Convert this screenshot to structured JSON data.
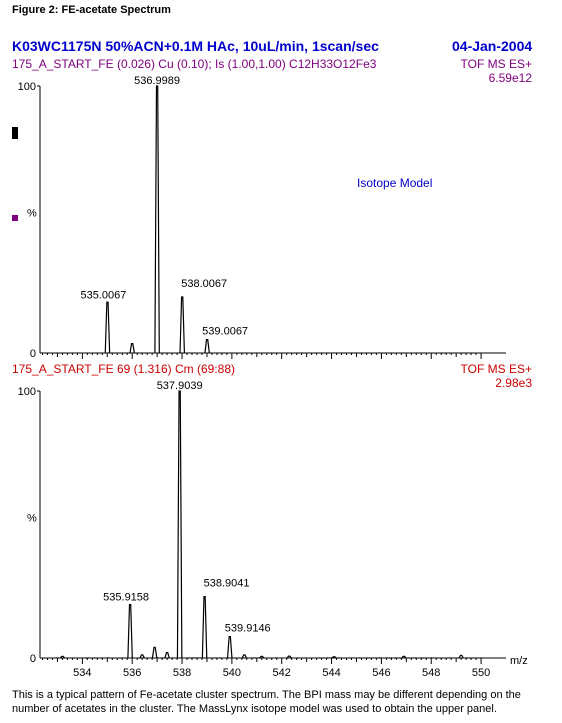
{
  "figure_title": "Figure 2:  FE-acetate Spectrum",
  "experiment_title": "K03WC1175N 50%ACN+0.1M HAc, 10uL/min, 1scan/sec",
  "date": "04-Jan-2004",
  "caption": "This is a typical pattern of Fe-acetate cluster spectrum.  The BPI mass may be different depending on the number of acetates in the cluster.  The MassLynx isotope model was used to obtain the upper panel.",
  "colors": {
    "title": "#0000cc",
    "top_header": "#800080",
    "bottom_header": "#cc0000",
    "marker": "#800080"
  },
  "chart_data": [
    {
      "type": "line",
      "name": "top",
      "header_left": "175_A_START_FE  (0.026) Cu (0.10); Is (1.00,1.00) C12H33O12Fe3",
      "header_right": "TOF MS ES+",
      "header_right2": "6.59e12",
      "annotation": "Isotope Model",
      "ylabel": "%",
      "ytick_labels": [
        "0",
        "100"
      ],
      "xlim": [
        532.3,
        551
      ],
      "ylim": [
        0,
        100
      ],
      "peaks": [
        {
          "x": 535.0067,
          "y": 19,
          "label": "535.0067"
        },
        {
          "x": 536.0,
          "y": 3.5,
          "label": ""
        },
        {
          "x": 536.9989,
          "y": 100,
          "label": "536.9989"
        },
        {
          "x": 538.0067,
          "y": 21,
          "label": "538.0067"
        },
        {
          "x": 539.0067,
          "y": 5,
          "label": "539.0067"
        }
      ]
    },
    {
      "type": "line",
      "name": "bottom",
      "header_left": "175_A_START_FE 69 (1.316) Cm (69:88)",
      "header_right": "TOF MS ES+",
      "header_right2": "2.98e3",
      "ylabel": "%",
      "xlabel": "m/z",
      "ytick_labels": [
        "0",
        "100"
      ],
      "xlim": [
        532.3,
        551
      ],
      "ylim": [
        0,
        100
      ],
      "xticks": [
        534,
        536,
        538,
        540,
        542,
        544,
        546,
        548,
        550
      ],
      "peaks": [
        {
          "x": 533.2,
          "y": 0.6,
          "label": ""
        },
        {
          "x": 535.9158,
          "y": 20,
          "label": "535.9158"
        },
        {
          "x": 536.4,
          "y": 1.2,
          "label": ""
        },
        {
          "x": 536.9,
          "y": 4,
          "label": ""
        },
        {
          "x": 537.4,
          "y": 2,
          "label": ""
        },
        {
          "x": 537.9039,
          "y": 100,
          "label": "537.9039"
        },
        {
          "x": 538.9041,
          "y": 23,
          "label": "538.9041"
        },
        {
          "x": 539.9146,
          "y": 8,
          "label": "539.9146"
        },
        {
          "x": 540.5,
          "y": 1.2,
          "label": ""
        },
        {
          "x": 541.2,
          "y": 0.6,
          "label": ""
        },
        {
          "x": 542.3,
          "y": 0.7,
          "label": ""
        },
        {
          "x": 544.1,
          "y": 0.5,
          "label": ""
        },
        {
          "x": 546.9,
          "y": 0.6,
          "label": ""
        },
        {
          "x": 549.2,
          "y": 1.0,
          "label": ""
        }
      ]
    }
  ]
}
